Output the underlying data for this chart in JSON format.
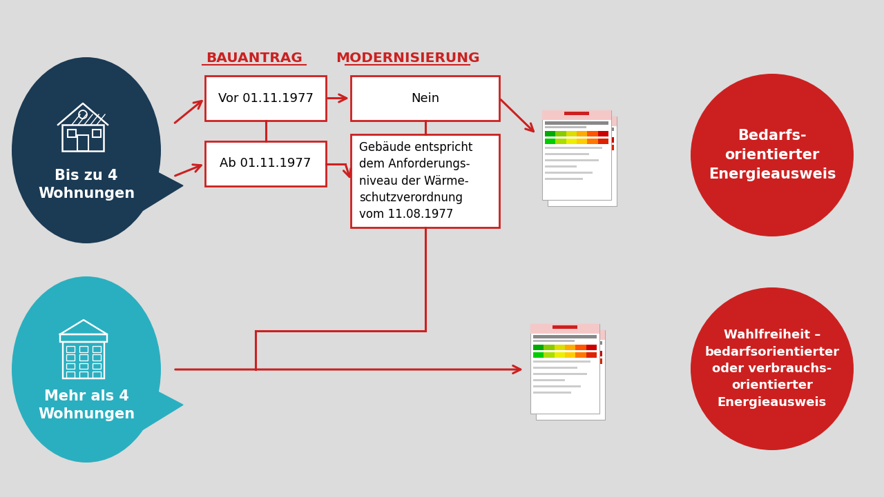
{
  "bg_color": "#dcdcdc",
  "dark_blue": "#1b3a54",
  "teal": "#2aafc0",
  "red": "#cc2020",
  "white": "#ffffff",
  "box_border": "#cc2020",
  "arrow_color": "#cc2020",
  "title_bauantrag": "BAUANTRAG",
  "title_modernisierung": "MODERNISIERUNG",
  "box1_text": "Vor 01.11.1977",
  "box2_text": "Ab 01.11.1977",
  "box3_text": "Nein",
  "box4_text": "Gebäude entspricht\ndem Anforderungs-\nniveau der Wärme-\nschutzverordnung\nvom 11.08.1977",
  "circle1_line1": "Bis zu 4",
  "circle1_line2": "Wohnungen",
  "circle2_line1": "Mehr als 4",
  "circle2_line2": "Wohnungen",
  "result1_text": "Bedarfs-\norientierter\nEnergieausweis",
  "result2_text": "Wahlfreiheit –\nbedarfsorientierter\noder verbrauchs-\norientierter\nEnergieausweis"
}
